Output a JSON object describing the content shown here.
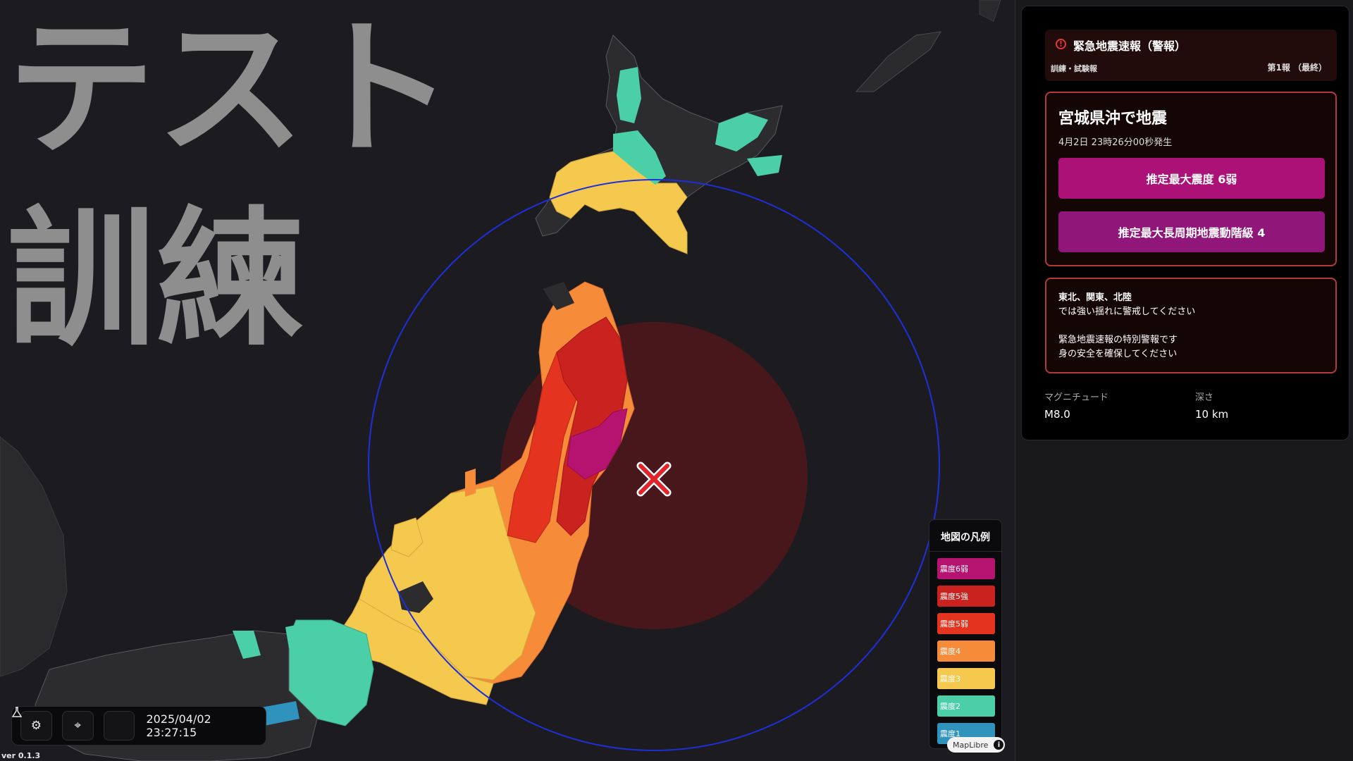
{
  "map": {
    "watermark_line1": "テスト",
    "watermark_line2": "訓練",
    "epicenter_icon": "x-mark",
    "colors": {
      "shindo6weak": "#b5136f",
      "shindo5strong": "#c9221f",
      "shindo5weak": "#e43420",
      "shindo4": "#f68b3a",
      "shindo3": "#f5c94d",
      "shindo2": "#4bcfa6",
      "shindo1": "#2f93be",
      "land": "#2c2c2f",
      "s_wave_fill": "#4a171b",
      "p_wave_ring": "#1d2fd9"
    }
  },
  "toolbar": {
    "settings_icon": "gear-icon",
    "locate_icon": "crosshair-icon",
    "test_icon": "flask-icon",
    "clock": "2025/04/02 23:27:15"
  },
  "version": "ver 0.1.3",
  "legend": {
    "title": "地図の凡例",
    "items": [
      {
        "label": "震度6弱",
        "color": "#b5136f"
      },
      {
        "label": "震度5強",
        "color": "#c9221f"
      },
      {
        "label": "震度5弱",
        "color": "#e43420"
      },
      {
        "label": "震度4",
        "color": "#f68b3a"
      },
      {
        "label": "震度3",
        "color": "#f5c94d"
      },
      {
        "label": "震度2",
        "color": "#4bcfa6"
      },
      {
        "label": "震度1",
        "color": "#2f93be"
      }
    ],
    "attribution": "MapLibre"
  },
  "panel": {
    "alert_title": "緊急地震速報（警報）",
    "alert_kind": "訓練・試験報",
    "report_number": "第1報 （最終）",
    "eq_name": "宮城県沖で地震",
    "eq_time": "4月2日 23時26分00秒発生",
    "max_intensity": "推定最大震度 6弱",
    "max_lpgm": "推定最大長周期地震動階級 4",
    "message_areas": "東北、関東、北陸",
    "message_warn": "では強い揺れに警戒してください",
    "message_special": "緊急地震速報の特別警報です",
    "message_safety": "身の安全を確保してください",
    "magnitude_label": "マグニチュード",
    "magnitude_value": "M8.0",
    "depth_label": "深さ",
    "depth_value": "10 km"
  }
}
